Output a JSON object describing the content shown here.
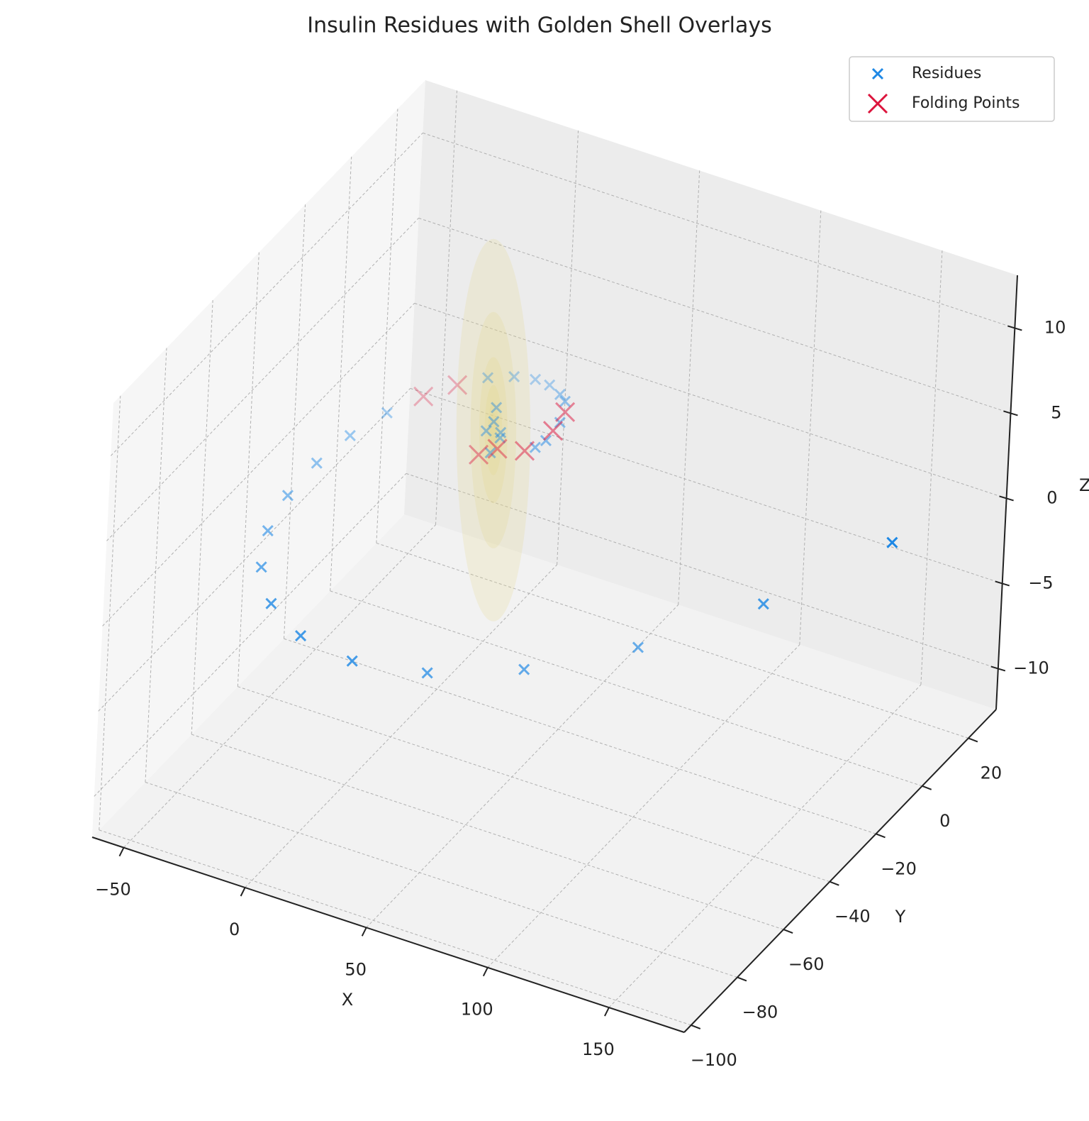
{
  "chart_data": {
    "type": "scatter3d",
    "title": "Insulin Residues with Golden Shell Overlays",
    "xlabel": "X",
    "ylabel": "Y",
    "zlabel": "Z",
    "xlim": [
      -63,
      181
    ],
    "ylim": [
      -103,
      32
    ],
    "zlim": [
      -12.4,
      13.1
    ],
    "xticks": [
      {
        "value": -50,
        "label": "−50"
      },
      0,
      50,
      100,
      150
    ],
    "yticks": [
      {
        "value": -100,
        "label": "−100"
      },
      {
        "value": -80,
        "label": "−80"
      },
      {
        "value": -60,
        "label": "−60"
      },
      {
        "value": -40,
        "label": "−40"
      },
      {
        "value": -20,
        "label": "−20"
      },
      0,
      20
    ],
    "zticks": [
      {
        "value": -10,
        "label": "−10"
      },
      {
        "value": -5,
        "label": "−5"
      },
      0,
      5,
      10
    ],
    "grid": true,
    "legend": "upper right",
    "shells": {
      "color": "#e3d48a",
      "radii": [
        1,
        1.618,
        2.618,
        4.236,
        6.854,
        11.09
      ]
    },
    "series": [
      {
        "name": "Residues",
        "color": "#1e88e5",
        "x": [
          164,
          113,
          63,
          35,
          13.6,
          0.7,
          -11.8,
          -24.4,
          -38,
          -45,
          -46.5,
          -44.3,
          -40.2,
          -34.6,
          -12.2,
          -6,
          0,
          5.9,
          13,
          19.6,
          22.4,
          21.5,
          17.3,
          0,
          2,
          -2,
          1,
          -1,
          3
        ],
        "y": [
          0,
          0,
          0,
          -20,
          -40,
          -60,
          -70,
          -70,
          -60,
          -50,
          -40,
          -30,
          -20,
          -10,
          10,
          15,
          18,
          18,
          15,
          10,
          5,
          0,
          0,
          0,
          1,
          -1,
          -2,
          2,
          0
        ],
        "z": [
          1.1,
          -4.9,
          -9.8,
          -9.6,
          -8,
          -5.1,
          -2.8,
          -1.5,
          -1.4,
          -1,
          -0.4,
          0.2,
          0.6,
          0.8,
          1.1,
          0.75,
          0.45,
          0.4,
          0.6,
          1.2,
          0.8,
          0.4,
          -0.2,
          0.5,
          -0.5,
          0,
          -1,
          1,
          0
        ]
      },
      {
        "name": "Folding Points",
        "color": "#dc143c",
        "x": [
          -33.5,
          -24.4,
          24.3,
          24.2,
          13.1,
          -5.5,
          2
        ],
        "y": [
          5,
          10,
          5,
          0,
          0,
          0,
          0
        ],
        "z": [
          -0.3,
          0.1,
          1.5,
          1.1,
          -0.6,
          -1.7,
          -1
        ]
      }
    ]
  }
}
